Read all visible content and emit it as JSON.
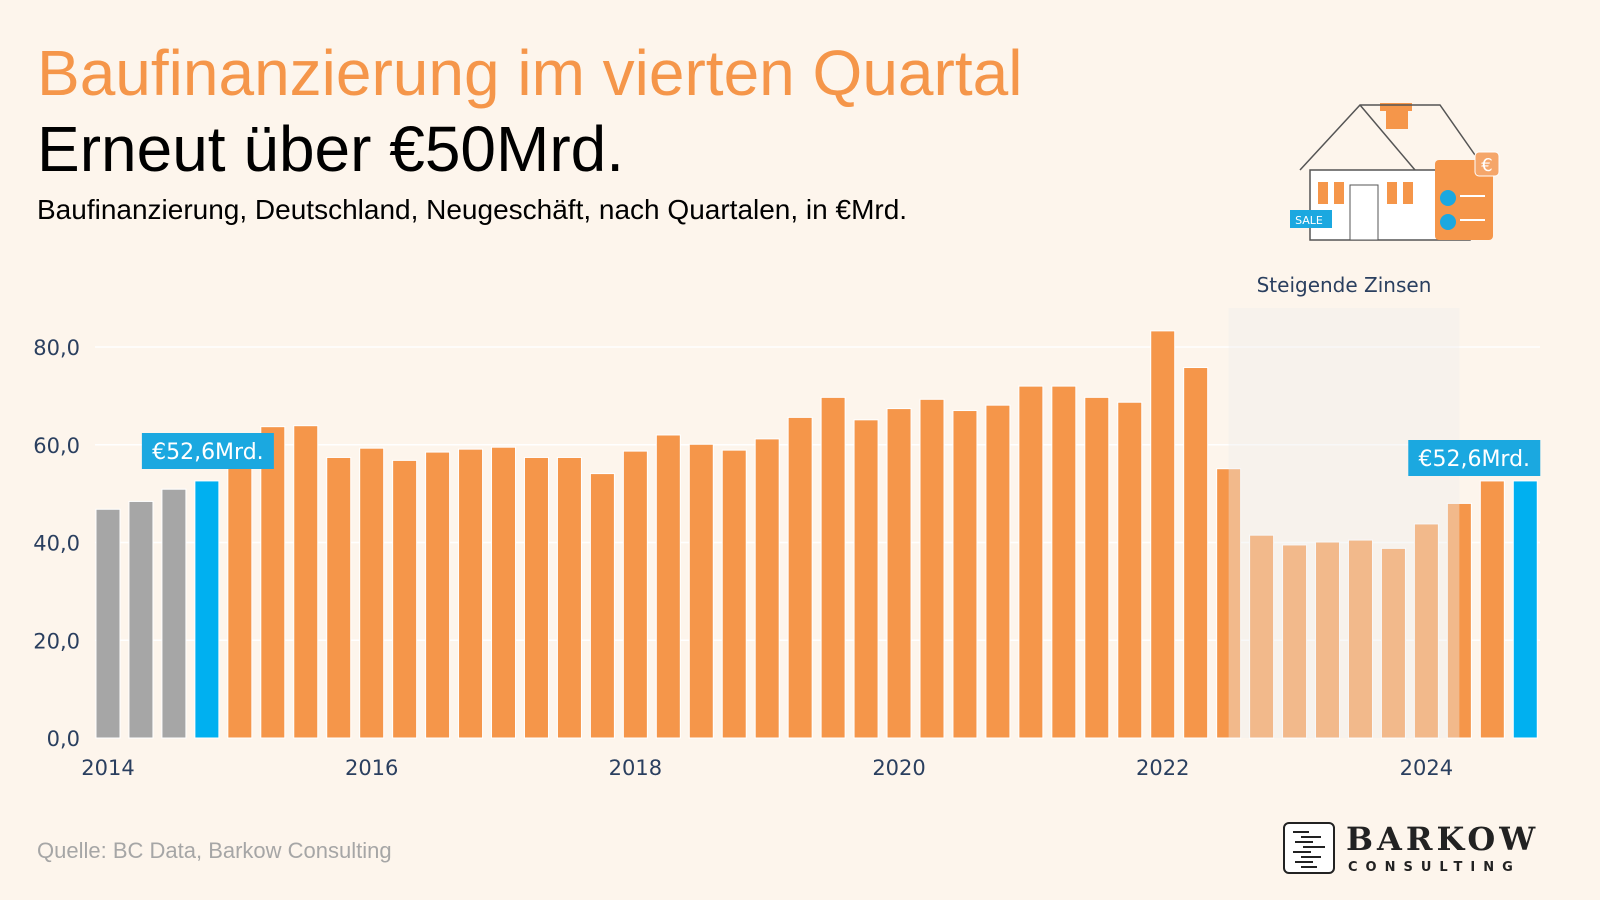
{
  "header": {
    "title": "Baufinanzierung im vierten Quartal",
    "subtitle": "Erneut über €50Mrd.",
    "description": "Baufinanzierung, Deutschland, Neugeschäft, nach Quartalen, in €Mrd."
  },
  "footer": {
    "source": "Quelle: BC Data, Barkow Consulting",
    "logo_name": "BARKOW",
    "logo_sub": "CONSULTING"
  },
  "illustration": {
    "sale_sign": "SALE",
    "icon": "house-mortgage-icon"
  },
  "chart_data": {
    "type": "bar",
    "title": "",
    "xlabel": "",
    "ylabel": "",
    "ylim": [
      0,
      85
    ],
    "yticks": [
      0,
      20,
      40,
      60,
      80
    ],
    "ytick_labels": [
      "0,0",
      "20,0",
      "40,0",
      "60,0",
      "80,0"
    ],
    "xtick_labels": [
      "2014",
      "2016",
      "2018",
      "2020",
      "2022",
      "2024"
    ],
    "grid": true,
    "colors": {
      "history": "#A6A6A6",
      "main": "#F5964A",
      "highlight": "#00B0F0",
      "shade": "#EEEEEE"
    },
    "categories": [
      "2014 Q1",
      "2014 Q2",
      "2014 Q3",
      "2014 Q4",
      "2015 Q1",
      "2015 Q2",
      "2015 Q3",
      "2015 Q4",
      "2016 Q1",
      "2016 Q2",
      "2016 Q3",
      "2016 Q4",
      "2017 Q1",
      "2017 Q2",
      "2017 Q3",
      "2017 Q4",
      "2018 Q1",
      "2018 Q2",
      "2018 Q3",
      "2018 Q4",
      "2019 Q1",
      "2019 Q2",
      "2019 Q3",
      "2019 Q4",
      "2020 Q1",
      "2020 Q2",
      "2020 Q3",
      "2020 Q4",
      "2021 Q1",
      "2021 Q2",
      "2021 Q3",
      "2021 Q4",
      "2022 Q1",
      "2022 Q2",
      "2022 Q3",
      "2022 Q4",
      "2023 Q1",
      "2023 Q2",
      "2023 Q3",
      "2023 Q4",
      "2024 Q1",
      "2024 Q2",
      "2024 Q3",
      "2024 Q4"
    ],
    "values": [
      46.8,
      48.4,
      50.9,
      52.6,
      56.0,
      63.7,
      63.9,
      57.4,
      59.3,
      56.8,
      58.5,
      59.1,
      59.5,
      57.4,
      57.4,
      54.1,
      58.7,
      62.0,
      60.1,
      58.9,
      61.2,
      65.6,
      69.7,
      65.1,
      67.4,
      69.3,
      67.0,
      68.1,
      72.0,
      72.0,
      69.7,
      68.7,
      83.3,
      75.8,
      55.1,
      41.5,
      39.5,
      40.1,
      40.5,
      38.8,
      43.8,
      48.0,
      52.6,
      52.6
    ],
    "bar_colors": [
      "history",
      "history",
      "history",
      "highlight",
      "main",
      "main",
      "main",
      "main",
      "main",
      "main",
      "main",
      "main",
      "main",
      "main",
      "main",
      "main",
      "main",
      "main",
      "main",
      "main",
      "main",
      "main",
      "main",
      "main",
      "main",
      "main",
      "main",
      "main",
      "main",
      "main",
      "main",
      "main",
      "main",
      "main",
      "main",
      "main",
      "main",
      "main",
      "main",
      "main",
      "main",
      "main",
      "main",
      "highlight"
    ],
    "annotations": [
      {
        "text": "€52,6Mrd.",
        "category": "2014 Q4"
      },
      {
        "text": "€52,6Mrd.",
        "category": "2024 Q4"
      }
    ],
    "shaded_region": {
      "label": "Steigende Zinsen",
      "from": "2022 Q3",
      "to": "2024 Q2"
    }
  }
}
